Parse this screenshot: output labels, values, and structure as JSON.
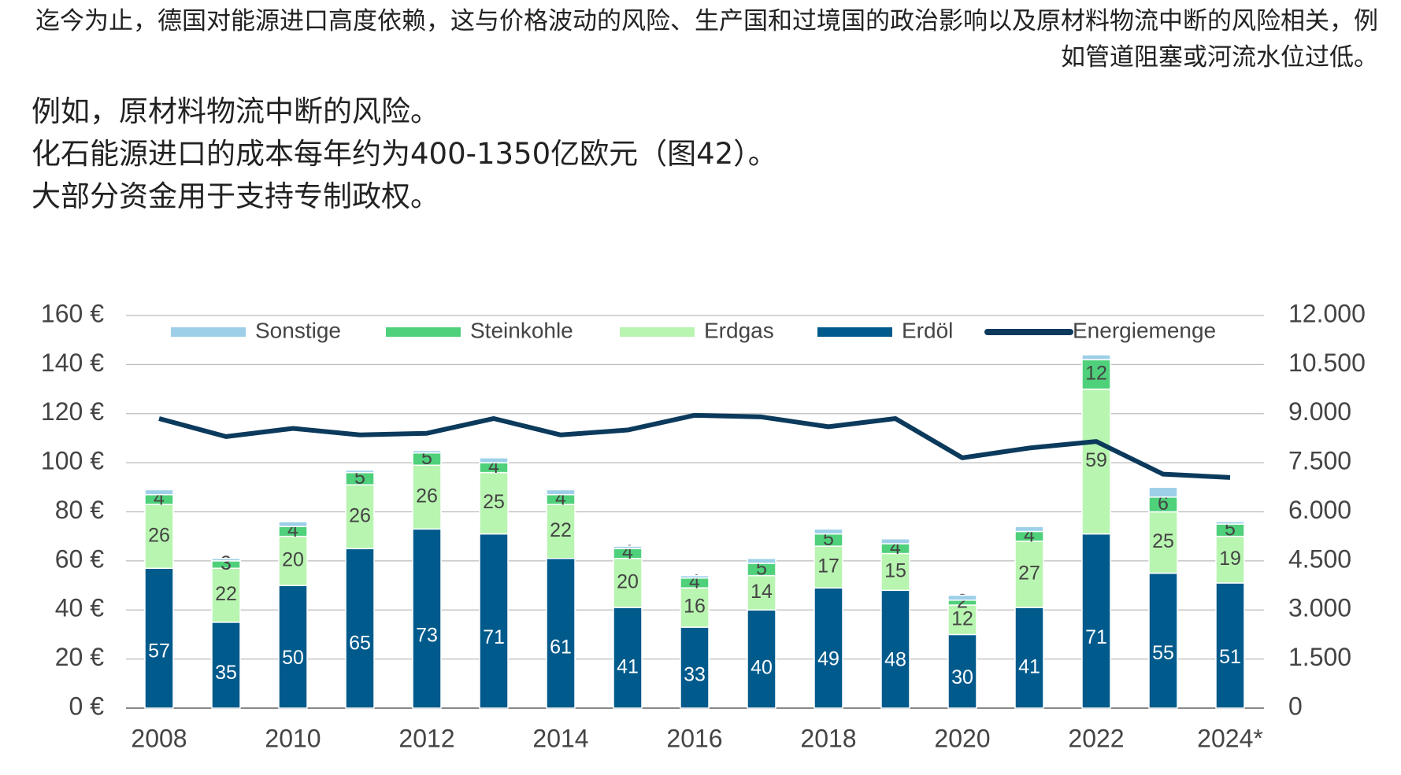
{
  "paragraphs": [
    "迄今为止，德国对能源进口高度依赖，这与价格波动的风险、生产国和过境国的政治影响以及原材料物流中断的风险相关，例如管道阻塞或河流水位过低。",
    "例如，原材料物流中断的风险。",
    "化石能源进口的成本每年约为400-1350亿欧元（图42）。",
    "大部分资金用于支持专制政权。"
  ],
  "chart_data": {
    "type": "stacked-bar-line",
    "categories": [
      "2008",
      null,
      "2010",
      null,
      "2012",
      null,
      "2014",
      null,
      "2016",
      null,
      "2018",
      null,
      "2020",
      null,
      "2022",
      null,
      "2024*"
    ],
    "series": [
      {
        "name": "Erdöl",
        "color": "#005a8c",
        "values": [
          57,
          35,
          50,
          65,
          73,
          71,
          61,
          41,
          33,
          40,
          49,
          48,
          30,
          41,
          71,
          55,
          51
        ]
      },
      {
        "name": "Erdgas",
        "color": "#b8f5b0",
        "values": [
          26,
          22,
          20,
          26,
          26,
          25,
          22,
          20,
          16,
          14,
          17,
          15,
          12,
          27,
          59,
          25,
          19
        ]
      },
      {
        "name": "Steinkohle",
        "color": "#4fd07a",
        "values": [
          4,
          3,
          4,
          5,
          5,
          4,
          4,
          4,
          4,
          5,
          5,
          4,
          2,
          4,
          12,
          6,
          5
        ]
      },
      {
        "name": "Sonstige",
        "color": "#9dcfe8",
        "values": [
          2,
          1,
          2,
          1,
          1,
          2,
          2,
          1,
          1,
          2,
          2,
          2,
          2,
          2,
          2,
          4,
          1
        ]
      },
      {
        "name": "Energiemenge",
        "color": "#0b3a5c",
        "axis": "y2",
        "values": [
          8850,
          8300,
          8550,
          8350,
          8400,
          8850,
          8350,
          8500,
          8950,
          8900,
          8600,
          8850,
          7650,
          7950,
          8150,
          7150,
          7050
        ]
      }
    ],
    "labeled_series": [
      0,
      1,
      2
    ],
    "legend_order": [
      3,
      2,
      1,
      0,
      4
    ],
    "ylim": [
      0,
      160
    ],
    "yticks": [
      {
        "value": 0,
        "label": "0 €"
      },
      {
        "value": 20,
        "label": "20 €"
      },
      {
        "value": 40,
        "label": "40 €"
      },
      {
        "value": 60,
        "label": "60 €"
      },
      {
        "value": 80,
        "label": "80 €"
      },
      {
        "value": 100,
        "label": "100 €"
      },
      {
        "value": 120,
        "label": "120 €"
      },
      {
        "value": 140,
        "label": "140 €"
      },
      {
        "value": 160,
        "label": "160 €"
      }
    ],
    "y2lim": [
      0,
      12000
    ],
    "y2ticks": [
      0,
      {
        "value": 1500,
        "label": "1.500"
      },
      {
        "value": 3000,
        "label": "3.000"
      },
      {
        "value": 4500,
        "label": "4.500"
      },
      {
        "value": 6000,
        "label": "6.000"
      },
      {
        "value": 7500,
        "label": "7.500"
      },
      {
        "value": 9000,
        "label": "9.000"
      },
      {
        "value": 10500,
        "label": "10.500"
      },
      {
        "value": 12000,
        "label": "12.000"
      }
    ],
    "grid": true
  }
}
